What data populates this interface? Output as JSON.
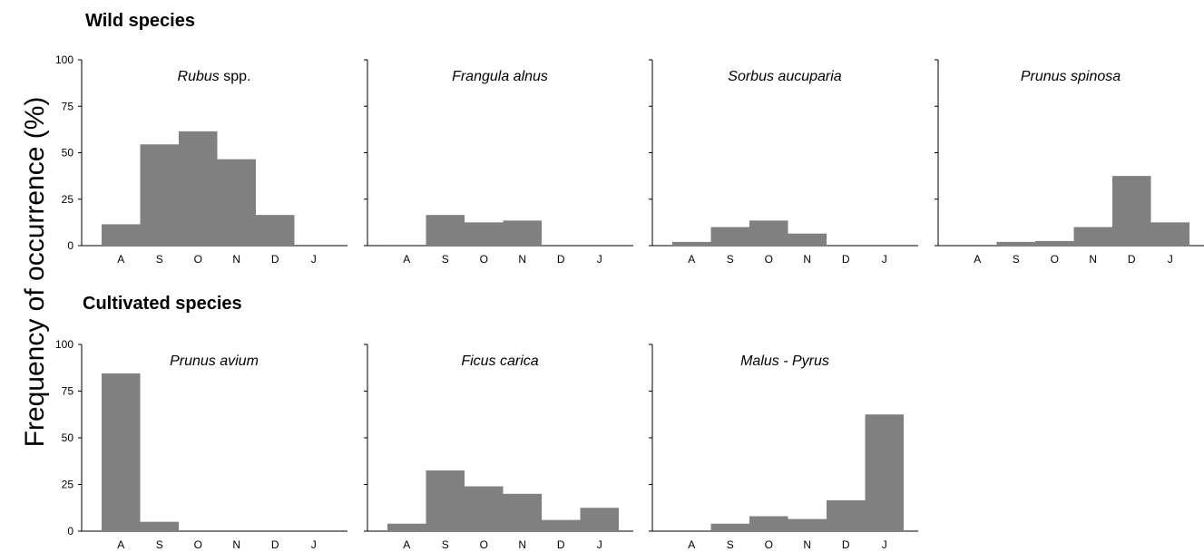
{
  "figure": {
    "ylabel": "Frequency of occurrence (%)",
    "groups": [
      {
        "title": "Wild species"
      },
      {
        "title": "Cultivated species"
      }
    ]
  },
  "chart_data": [
    {
      "type": "bar",
      "group": 0,
      "title": "Rubus",
      "title_suffix": " spp.",
      "categories": [
        "A",
        "S",
        "O",
        "N",
        "D",
        "J"
      ],
      "values": [
        11.5,
        54.5,
        61.5,
        46.5,
        16.5,
        0
      ],
      "ylim": [
        0,
        100
      ],
      "yticks": [
        0,
        25,
        50,
        75,
        100
      ],
      "bar_color": "#808080"
    },
    {
      "type": "bar",
      "group": 0,
      "title": "Frangula alnus",
      "title_suffix": "",
      "categories": [
        "A",
        "S",
        "O",
        "N",
        "D",
        "J"
      ],
      "values": [
        0.5,
        16.5,
        12.5,
        13.5,
        0,
        0
      ],
      "ylim": [
        0,
        100
      ],
      "yticks": [
        0,
        25,
        50,
        75,
        100
      ],
      "bar_color": "#808080"
    },
    {
      "type": "bar",
      "group": 0,
      "title": "Sorbus aucuparia",
      "title_suffix": "",
      "categories": [
        "A",
        "S",
        "O",
        "N",
        "D",
        "J"
      ],
      "values": [
        2,
        10,
        13.5,
        6.5,
        0,
        0
      ],
      "ylim": [
        0,
        100
      ],
      "yticks": [
        0,
        25,
        50,
        75,
        100
      ],
      "bar_color": "#808080"
    },
    {
      "type": "bar",
      "group": 0,
      "title": "Prunus spinosa",
      "title_suffix": "",
      "categories": [
        "A",
        "S",
        "O",
        "N",
        "D",
        "J"
      ],
      "values": [
        0,
        2,
        2.5,
        10,
        37.5,
        12.5
      ],
      "ylim": [
        0,
        100
      ],
      "yticks": [
        0,
        25,
        50,
        75,
        100
      ],
      "bar_color": "#808080"
    },
    {
      "type": "bar",
      "group": 1,
      "title": "Prunus avium",
      "title_suffix": "",
      "categories": [
        "A",
        "S",
        "O",
        "N",
        "D",
        "J"
      ],
      "values": [
        84.5,
        5,
        0.5,
        0,
        0,
        0
      ],
      "ylim": [
        0,
        100
      ],
      "yticks": [
        0,
        25,
        50,
        75,
        100
      ],
      "bar_color": "#808080"
    },
    {
      "type": "bar",
      "group": 1,
      "title": "Ficus carica",
      "title_suffix": "",
      "categories": [
        "A",
        "S",
        "O",
        "N",
        "D",
        "J"
      ],
      "values": [
        4,
        32.5,
        24,
        20,
        6,
        12.5
      ],
      "ylim": [
        0,
        100
      ],
      "yticks": [
        0,
        25,
        50,
        75,
        100
      ],
      "bar_color": "#808080"
    },
    {
      "type": "bar",
      "group": 1,
      "title": "Malus - Pyrus",
      "title_suffix": "",
      "categories": [
        "A",
        "S",
        "O",
        "N",
        "D",
        "J"
      ],
      "values": [
        0,
        4,
        8,
        6.5,
        16.5,
        62.5
      ],
      "ylim": [
        0,
        100
      ],
      "yticks": [
        0,
        25,
        50,
        75,
        100
      ],
      "bar_color": "#808080"
    }
  ]
}
